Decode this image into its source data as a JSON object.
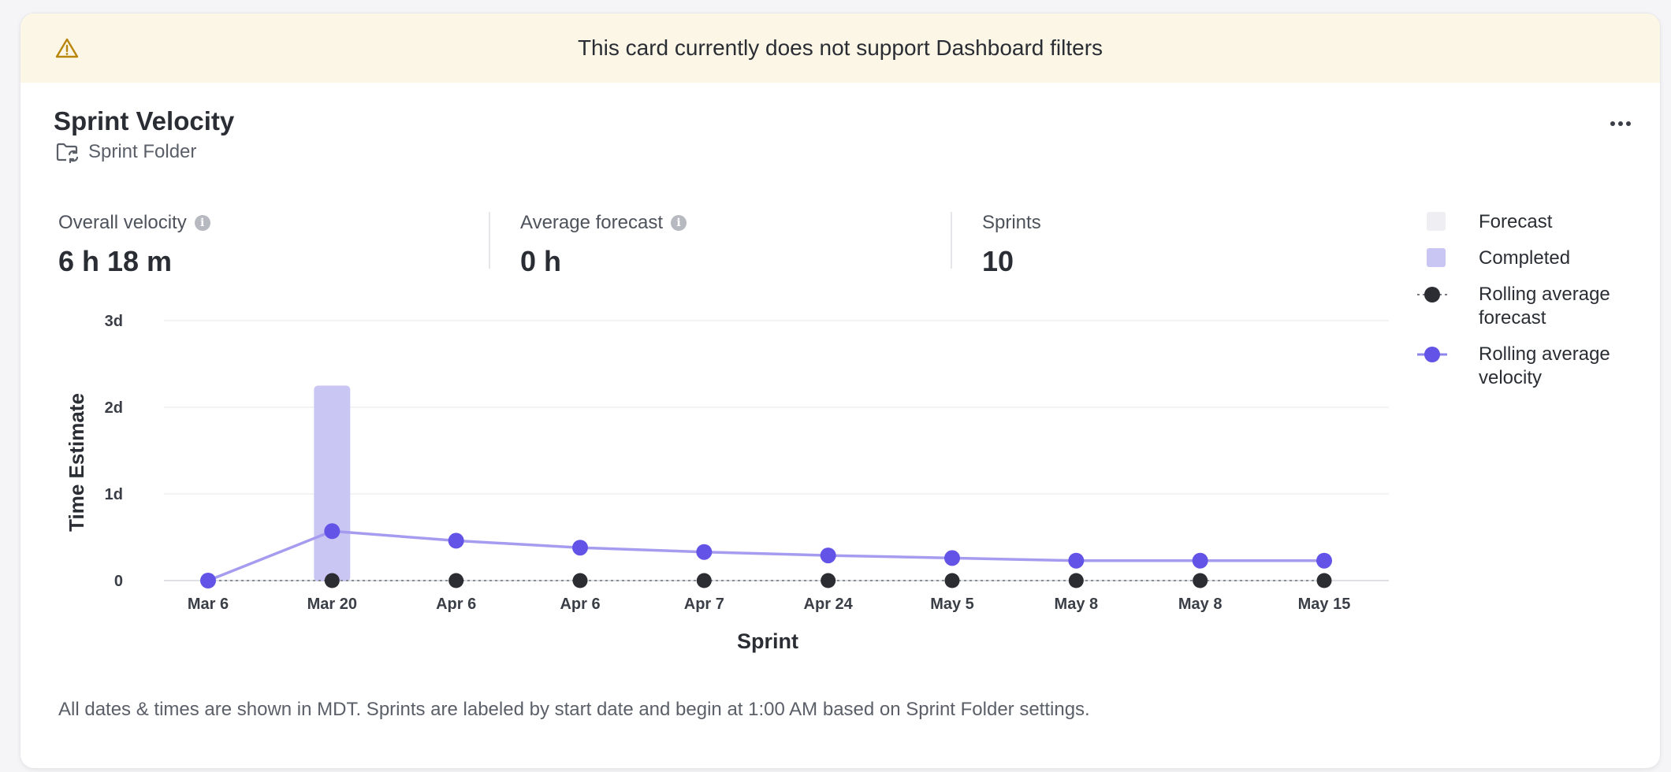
{
  "banner": {
    "icon": "warning-icon",
    "text": "This card currently does not support Dashboard filters"
  },
  "card": {
    "title": "Sprint Velocity",
    "folder_icon": "folder-sync-icon",
    "folder_label": "Sprint Folder",
    "menu_icon": "more-horizontal-icon"
  },
  "stats": [
    {
      "label": "Overall velocity",
      "value": "6 h 18 m",
      "info": true
    },
    {
      "label": "Average forecast",
      "value": "0 h",
      "info": true
    },
    {
      "label": "Sprints",
      "value": "10",
      "info": false
    }
  ],
  "legend": [
    {
      "label_1": "Forecast",
      "label_2": ""
    },
    {
      "label_1": "Completed",
      "label_2": ""
    },
    {
      "label_1": "Rolling average",
      "label_2": "forecast"
    },
    {
      "label_1": "Rolling average",
      "label_2": "velocity"
    }
  ],
  "colors": {
    "forecast": "#efeff3",
    "completed": "#c9c6f3",
    "rolling_forecast": "#2b2d33",
    "rolling_velocity": "#6353e6",
    "velocity_line": "#a59cf0"
  },
  "chart_data": {
    "type": "bar",
    "xlabel": "Sprint",
    "ylabel": "Time Estimate",
    "y_ticks": [
      {
        "value": 0,
        "label": "0"
      },
      {
        "value": 1,
        "label": "1d"
      },
      {
        "value": 2,
        "label": "2d"
      },
      {
        "value": 3,
        "label": "3d"
      }
    ],
    "ylim": [
      0,
      3
    ],
    "y_unit": "days",
    "categories": [
      "Mar 6",
      "Mar 20",
      "Apr 6",
      "Apr 6",
      "Apr 7",
      "Apr 24",
      "May 5",
      "May 8",
      "May 8",
      "May 15"
    ],
    "series": [
      {
        "name": "Forecast",
        "type": "bar",
        "values": [
          0,
          0,
          0,
          0,
          0,
          0,
          0,
          0,
          0,
          0
        ]
      },
      {
        "name": "Completed",
        "type": "bar",
        "values": [
          0,
          2.25,
          0,
          0,
          0,
          0,
          0,
          0,
          0,
          0
        ]
      },
      {
        "name": "Rolling average forecast",
        "type": "line",
        "values": [
          0,
          0,
          0,
          0,
          0,
          0,
          0,
          0,
          0,
          0
        ]
      },
      {
        "name": "Rolling average velocity",
        "type": "line",
        "values": [
          0,
          0.57,
          0.46,
          0.38,
          0.33,
          0.29,
          0.26,
          0.23,
          0.23,
          0.23
        ]
      }
    ],
    "grid": true,
    "legend_position": "right"
  },
  "footnote": "All dates & times are shown in MDT. Sprints are labeled by start date and begin at 1:00 AM based on Sprint Folder settings."
}
